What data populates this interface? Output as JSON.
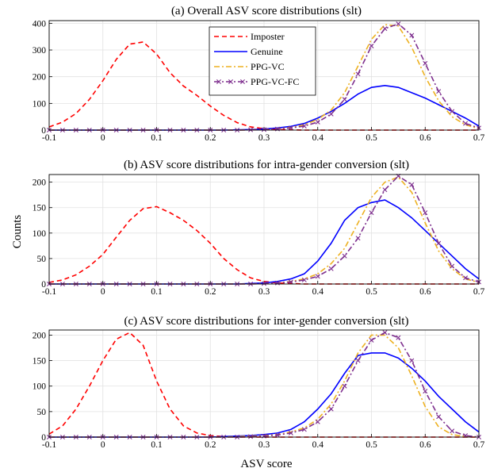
{
  "figure": {
    "xlabel": "ASV score",
    "ylabel": "Counts"
  },
  "chart_data": [
    {
      "type": "line",
      "title": "(a) Overall ASV score distributions (slt)",
      "xlim": [
        -0.1,
        0.7
      ],
      "ylim": [
        0,
        410
      ],
      "xticks": [
        "-0.1",
        "0",
        "0.1",
        "0.2",
        "0.3",
        "0.4",
        "0.5",
        "0.6",
        "0.7"
      ],
      "yticks": [
        "0",
        "100",
        "200",
        "300",
        "400"
      ],
      "legend": {
        "placement": "top-center",
        "entries": [
          "Imposter",
          "Genuine",
          "PPG-VC",
          "PPG-VC-FC"
        ]
      },
      "grid": true,
      "x": [
        -0.1,
        -0.075,
        -0.05,
        -0.025,
        0,
        0.025,
        0.05,
        0.075,
        0.1,
        0.125,
        0.15,
        0.175,
        0.2,
        0.225,
        0.25,
        0.275,
        0.3,
        0.325,
        0.35,
        0.375,
        0.4,
        0.425,
        0.45,
        0.475,
        0.5,
        0.525,
        0.55,
        0.575,
        0.6,
        0.625,
        0.65,
        0.675,
        0.7
      ],
      "series": [
        {
          "name": "Imposter",
          "color": "#ff0000",
          "dash": "dashed",
          "marker": "none",
          "values": [
            12,
            30,
            62,
            115,
            185,
            265,
            322,
            330,
            285,
            215,
            165,
            130,
            90,
            55,
            28,
            12,
            5,
            2,
            1,
            0,
            0,
            0,
            0,
            0,
            0,
            0,
            0,
            0,
            0,
            0,
            0,
            0,
            0
          ]
        },
        {
          "name": "Genuine",
          "color": "#0000ff",
          "dash": "solid",
          "marker": "none",
          "values": [
            0,
            0,
            0,
            0,
            0,
            0,
            0,
            0,
            0,
            0,
            0,
            0,
            0,
            0,
            1,
            2,
            4,
            8,
            14,
            25,
            45,
            70,
            100,
            135,
            160,
            167,
            160,
            140,
            120,
            95,
            70,
            45,
            15
          ]
        },
        {
          "name": "PPG-VC",
          "color": "#edb120",
          "dash": "dashdot",
          "marker": "none",
          "values": [
            0,
            0,
            0,
            0,
            0,
            0,
            0,
            0,
            0,
            0,
            0,
            0,
            0,
            0,
            0,
            1,
            2,
            5,
            10,
            20,
            40,
            75,
            140,
            240,
            340,
            395,
            390,
            310,
            200,
            110,
            50,
            20,
            5
          ]
        },
        {
          "name": "PPG-VC-FC",
          "color": "#7e2f8e",
          "dash": "dashdot",
          "marker": "x",
          "values": [
            0,
            0,
            0,
            0,
            0,
            0,
            0,
            0,
            0,
            0,
            0,
            0,
            0,
            0,
            0,
            1,
            2,
            4,
            8,
            15,
            30,
            60,
            115,
            210,
            315,
            380,
            398,
            355,
            250,
            145,
            70,
            25,
            8
          ]
        }
      ]
    },
    {
      "type": "line",
      "title": "(b) ASV score distributions for intra-gender conversion (slt)",
      "xlim": [
        -0.1,
        0.7
      ],
      "ylim": [
        0,
        215
      ],
      "xticks": [
        "-0.1",
        "0",
        "0.1",
        "0.2",
        "0.3",
        "0.4",
        "0.5",
        "0.6",
        "0.7"
      ],
      "yticks": [
        "0",
        "50",
        "100",
        "150",
        "200"
      ],
      "grid": true,
      "x": [
        -0.1,
        -0.075,
        -0.05,
        -0.025,
        0,
        0.025,
        0.05,
        0.075,
        0.1,
        0.125,
        0.15,
        0.175,
        0.2,
        0.225,
        0.25,
        0.275,
        0.3,
        0.325,
        0.35,
        0.375,
        0.4,
        0.425,
        0.45,
        0.475,
        0.5,
        0.525,
        0.55,
        0.575,
        0.6,
        0.625,
        0.65,
        0.675,
        0.7
      ],
      "series": [
        {
          "name": "Imposter",
          "color": "#ff0000",
          "dash": "dashed",
          "marker": "none",
          "values": [
            3,
            8,
            18,
            35,
            58,
            92,
            125,
            148,
            152,
            140,
            125,
            105,
            80,
            50,
            28,
            12,
            5,
            2,
            1,
            0,
            0,
            0,
            0,
            0,
            0,
            0,
            0,
            0,
            0,
            0,
            0,
            0,
            0
          ]
        },
        {
          "name": "Genuine",
          "color": "#0000ff",
          "dash": "solid",
          "marker": "none",
          "values": [
            0,
            0,
            0,
            0,
            0,
            0,
            0,
            0,
            0,
            0,
            0,
            0,
            0,
            0,
            0,
            1,
            2,
            5,
            10,
            20,
            45,
            80,
            125,
            150,
            160,
            165,
            150,
            130,
            105,
            80,
            55,
            30,
            10
          ]
        },
        {
          "name": "PPG-VC",
          "color": "#edb120",
          "dash": "dashdot",
          "marker": "none",
          "values": [
            0,
            0,
            0,
            0,
            0,
            0,
            0,
            0,
            0,
            0,
            0,
            0,
            0,
            0,
            0,
            0,
            1,
            2,
            5,
            10,
            20,
            40,
            70,
            120,
            170,
            200,
            210,
            180,
            120,
            65,
            30,
            10,
            3
          ]
        },
        {
          "name": "PPG-VC-FC",
          "color": "#7e2f8e",
          "dash": "dashdot",
          "marker": "x",
          "values": [
            0,
            0,
            0,
            0,
            0,
            0,
            0,
            0,
            0,
            0,
            0,
            0,
            0,
            0,
            0,
            0,
            1,
            2,
            4,
            8,
            15,
            30,
            55,
            90,
            140,
            185,
            212,
            195,
            140,
            80,
            35,
            12,
            4
          ]
        }
      ]
    },
    {
      "type": "line",
      "title": "(c) ASV score distributions for inter-gender conversion (slt)",
      "xlim": [
        -0.1,
        0.7
      ],
      "ylim": [
        0,
        210
      ],
      "xticks": [
        "-0.1",
        "0",
        "0.1",
        "0.2",
        "0.3",
        "0.4",
        "0.5",
        "0.6",
        "0.7"
      ],
      "yticks": [
        "0",
        "50",
        "100",
        "150",
        "200"
      ],
      "grid": true,
      "x": [
        -0.1,
        -0.075,
        -0.05,
        -0.025,
        0,
        0.025,
        0.05,
        0.075,
        0.1,
        0.125,
        0.15,
        0.175,
        0.2,
        0.225,
        0.25,
        0.275,
        0.3,
        0.325,
        0.35,
        0.375,
        0.4,
        0.425,
        0.45,
        0.475,
        0.5,
        0.525,
        0.55,
        0.575,
        0.6,
        0.625,
        0.65,
        0.675,
        0.7
      ],
      "series": [
        {
          "name": "Imposter",
          "color": "#ff0000",
          "dash": "dashed",
          "marker": "none",
          "values": [
            6,
            22,
            55,
            100,
            150,
            192,
            205,
            180,
            110,
            55,
            22,
            8,
            3,
            1,
            0,
            0,
            0,
            0,
            0,
            0,
            0,
            0,
            0,
            0,
            0,
            0,
            0,
            0,
            0,
            0,
            0,
            0,
            0
          ]
        },
        {
          "name": "Genuine",
          "color": "#0000ff",
          "dash": "solid",
          "marker": "none",
          "values": [
            0,
            0,
            0,
            0,
            0,
            0,
            0,
            0,
            0,
            0,
            0,
            0,
            0,
            1,
            2,
            3,
            5,
            8,
            15,
            30,
            55,
            85,
            125,
            160,
            165,
            165,
            155,
            135,
            110,
            80,
            55,
            30,
            10
          ]
        },
        {
          "name": "PPG-VC",
          "color": "#edb120",
          "dash": "dashdot",
          "marker": "none",
          "values": [
            0,
            0,
            0,
            0,
            0,
            0,
            0,
            0,
            0,
            0,
            0,
            0,
            0,
            0,
            1,
            2,
            3,
            5,
            10,
            18,
            35,
            65,
            110,
            165,
            200,
            200,
            175,
            120,
            60,
            20,
            5,
            1,
            0
          ]
        },
        {
          "name": "PPG-VC-FC",
          "color": "#7e2f8e",
          "dash": "dashdot",
          "marker": "x",
          "values": [
            0,
            0,
            0,
            0,
            0,
            0,
            0,
            0,
            0,
            0,
            0,
            0,
            0,
            0,
            0,
            1,
            2,
            4,
            8,
            15,
            30,
            55,
            100,
            150,
            190,
            205,
            195,
            150,
            90,
            40,
            12,
            3,
            0
          ]
        }
      ]
    }
  ]
}
